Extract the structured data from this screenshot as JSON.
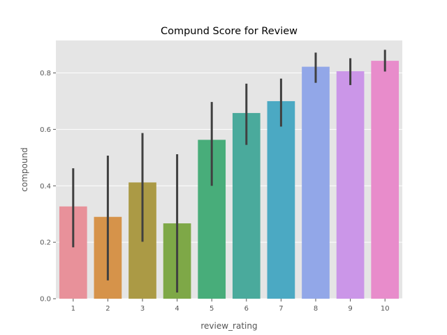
{
  "chart_data": {
    "type": "bar",
    "title": "Compund Score for Review",
    "xlabel": "review_rating",
    "ylabel": "compound",
    "categories": [
      "1",
      "2",
      "3",
      "4",
      "5",
      "6",
      "7",
      "8",
      "9",
      "10"
    ],
    "values": [
      0.327,
      0.29,
      0.412,
      0.267,
      0.563,
      0.658,
      0.7,
      0.822,
      0.806,
      0.843
    ],
    "error_low": [
      0.182,
      0.065,
      0.202,
      0.022,
      0.4,
      0.545,
      0.61,
      0.765,
      0.757,
      0.805
    ],
    "error_high": [
      0.462,
      0.507,
      0.587,
      0.512,
      0.697,
      0.762,
      0.78,
      0.872,
      0.852,
      0.882
    ],
    "ylim": [
      0,
      0.915
    ],
    "yticks": [
      0.0,
      0.2,
      0.4,
      0.6,
      0.8
    ],
    "ytick_labels": [
      "0.0",
      "0.2",
      "0.4",
      "0.6",
      "0.8"
    ],
    "grid": true,
    "colors": [
      "#e8919a",
      "#d6934a",
      "#ab9a45",
      "#7ea847",
      "#48ad7a",
      "#4aaa9c",
      "#4ba9c3",
      "#92a7e8",
      "#cb96e8",
      "#e88ccb"
    ],
    "error_bar_color": "#404040",
    "plot_background": "#e5e5e5"
  }
}
